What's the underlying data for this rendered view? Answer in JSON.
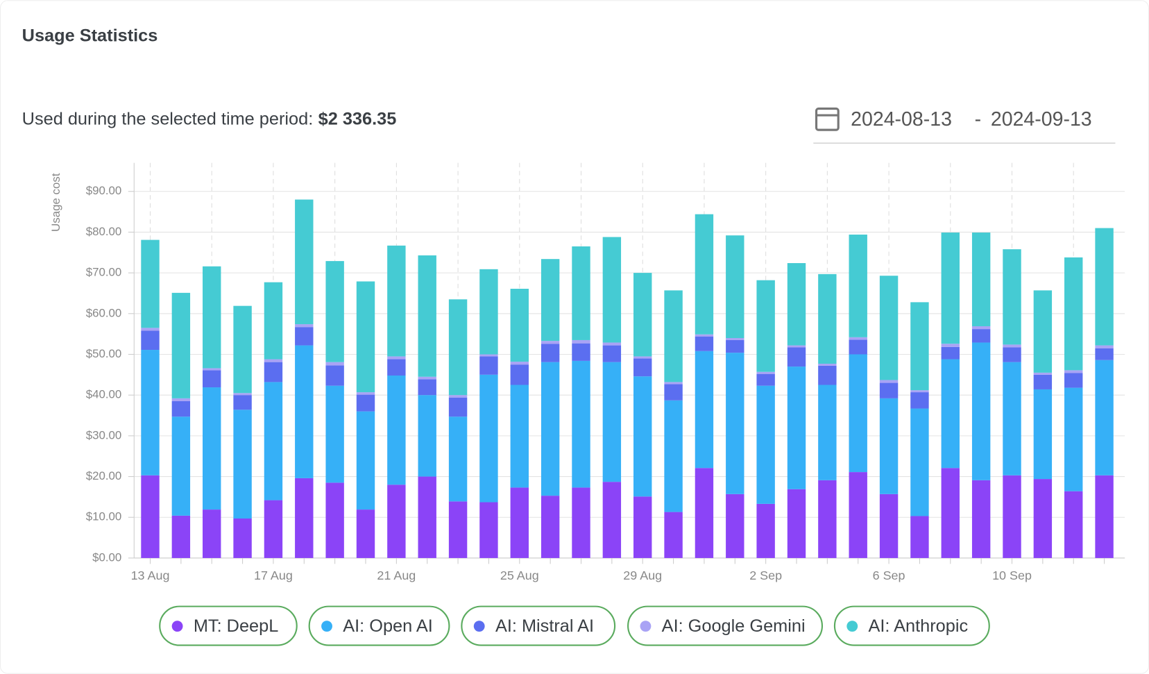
{
  "header": {
    "title": "Usage Statistics"
  },
  "summary": {
    "label": "Used during the selected time period:",
    "total": "$2 336.35"
  },
  "date_range": {
    "start": "2024-08-13",
    "separator": "-",
    "end": "2024-09-13"
  },
  "chart_data": {
    "type": "bar",
    "stacked": true,
    "y_label": "Usage cost",
    "categories": [
      "13 Aug",
      null,
      null,
      null,
      "17 Aug",
      null,
      null,
      null,
      "21 Aug",
      null,
      null,
      null,
      "25 Aug",
      null,
      null,
      null,
      "29 Aug",
      null,
      null,
      null,
      "2 Sep",
      null,
      null,
      null,
      "6 Sep",
      null,
      null,
      null,
      "10 Sep",
      null,
      null,
      null
    ],
    "series": [
      {
        "name": "MT: DeepL",
        "color": "#8b44f7",
        "values": [
          20.3,
          10.4,
          11.9,
          9.7,
          14.2,
          19.6,
          18.5,
          11.9,
          18.0,
          20.0,
          13.9,
          13.7,
          17.3,
          15.3,
          17.3,
          18.7,
          15.1,
          11.3,
          22.1,
          15.7,
          13.3,
          16.9,
          19.1,
          21.1,
          15.7,
          10.3,
          22.1,
          19.1,
          20.3,
          19.4,
          16.4,
          20.3
        ]
      },
      {
        "name": "AI: Open AI",
        "color": "#36b0f7",
        "values": [
          30.8,
          24.3,
          30.0,
          26.7,
          29.0,
          32.6,
          23.8,
          24.1,
          26.8,
          20.0,
          20.8,
          31.3,
          25.2,
          32.8,
          31.1,
          29.4,
          29.5,
          27.4,
          28.7,
          34.7,
          29.0,
          30.1,
          23.4,
          28.9,
          23.5,
          26.4,
          26.7,
          33.8,
          27.8,
          22.0,
          25.4,
          28.3
        ]
      },
      {
        "name": "AI: Mistral AI",
        "color": "#5b6ef0",
        "values": [
          4.7,
          3.8,
          4.2,
          3.6,
          4.9,
          4.5,
          5.0,
          4.1,
          4.0,
          3.9,
          4.7,
          4.5,
          5.0,
          4.5,
          4.3,
          4.1,
          4.4,
          4.0,
          3.6,
          3.1,
          2.9,
          4.7,
          4.7,
          3.6,
          3.8,
          4.0,
          3.0,
          3.3,
          3.6,
          3.6,
          3.6,
          2.9
        ]
      },
      {
        "name": "AI: Google Gemini",
        "color": "#a9a3f5",
        "values": [
          0.7,
          0.7,
          0.5,
          0.5,
          0.7,
          0.7,
          0.8,
          0.6,
          0.7,
          0.6,
          0.6,
          0.5,
          0.7,
          0.7,
          0.8,
          0.7,
          0.5,
          0.5,
          0.5,
          0.5,
          0.5,
          0.5,
          0.5,
          0.6,
          0.7,
          0.5,
          0.8,
          0.7,
          0.7,
          0.5,
          0.7,
          0.7
        ]
      },
      {
        "name": "AI: Anthropic",
        "color": "#45cbd3",
        "values": [
          21.6,
          25.9,
          25.0,
          21.4,
          18.9,
          30.6,
          24.8,
          27.2,
          27.2,
          29.8,
          23.5,
          20.9,
          17.9,
          20.1,
          23.0,
          25.9,
          20.5,
          22.5,
          29.5,
          25.2,
          22.5,
          20.2,
          22.0,
          25.2,
          25.6,
          21.6,
          27.3,
          23.0,
          23.4,
          20.2,
          27.7,
          28.8
        ]
      }
    ],
    "ylim": [
      0,
      97
    ],
    "yticks": [
      {
        "value": 0,
        "label": "$0.00"
      },
      {
        "value": 10,
        "label": "$10.00"
      },
      {
        "value": 20,
        "label": "$20.00"
      },
      {
        "value": 30,
        "label": "$30.00"
      },
      {
        "value": 40,
        "label": "$40.00"
      },
      {
        "value": 50,
        "label": "$50.00"
      },
      {
        "value": 60,
        "label": "$60.00"
      },
      {
        "value": 70,
        "label": "$70.00"
      },
      {
        "value": 80,
        "label": "$80.00"
      },
      {
        "value": 90,
        "label": "$90.00"
      }
    ],
    "grid": true
  }
}
